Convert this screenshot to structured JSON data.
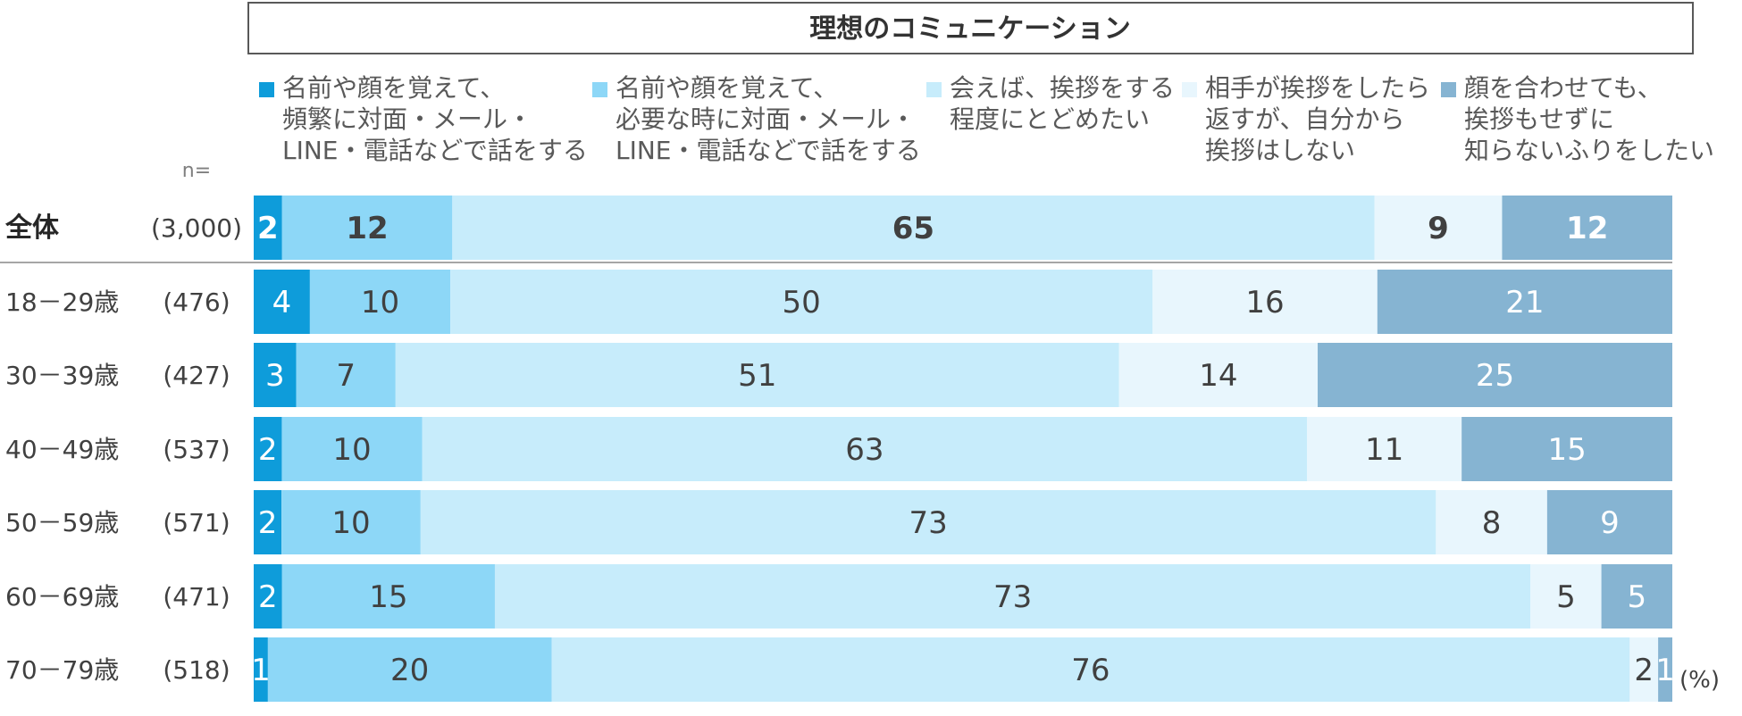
{
  "chart_data": {
    "type": "bar",
    "orientation": "horizontal",
    "stacked": true,
    "title": "理想のコミュニケーション",
    "n_label": "n=",
    "unit": "(%)",
    "xlim": [
      0,
      100
    ],
    "grid": false,
    "legend_position": "top",
    "categories": [
      {
        "label": "全体",
        "n": "(3,000)",
        "total": true
      },
      {
        "label": "18－29歳",
        "n": "(476)"
      },
      {
        "label": "30－39歳",
        "n": "(427)"
      },
      {
        "label": "40－49歳",
        "n": "(537)"
      },
      {
        "label": "50－59歳",
        "n": "(571)"
      },
      {
        "label": "60－69歳",
        "n": "(471)"
      },
      {
        "label": "70－79歳",
        "n": "(518)"
      }
    ],
    "series": [
      {
        "name": "名前や顔を覚えて、頻繁に対面・メール・LINE・電話などで話をする",
        "legend_lines": [
          "名前や顔を覚えて、",
          "頻繁に対面・メール・",
          "LINE・電話などで話をする"
        ],
        "color": "#0E9CDA",
        "label_color": "#ffffff",
        "values": [
          2,
          4,
          3,
          2,
          2,
          2,
          1
        ]
      },
      {
        "name": "名前や顔を覚えて、必要な時に対面・メール・LINE・電話などで話をする",
        "legend_lines": [
          "名前や顔を覚えて、",
          "必要な時に対面・メール・",
          "LINE・電話などで話をする"
        ],
        "color": "#8DD7F7",
        "label_color": "#404040",
        "values": [
          12,
          10,
          7,
          10,
          10,
          15,
          20
        ]
      },
      {
        "name": "会えば、挨拶をする程度にとどめたい",
        "legend_lines": [
          "会えば、挨拶をする",
          "程度にとどめたい"
        ],
        "color": "#C7ECFB",
        "label_color": "#404040",
        "values": [
          65,
          50,
          51,
          63,
          73,
          73,
          76
        ]
      },
      {
        "name": "相手が挨拶をしたら返すが、自分から挨拶はしない",
        "legend_lines": [
          "相手が挨拶をしたら",
          "返すが、自分から",
          "挨拶はしない"
        ],
        "color": "#E8F6FD",
        "label_color": "#404040",
        "values": [
          9,
          16,
          14,
          11,
          8,
          5,
          2
        ]
      },
      {
        "name": "顔を合わせても、挨拶もせずに知らないふりをしたい",
        "legend_lines": [
          "顔を合わせても、",
          "挨拶もせずに",
          "知らないふりをしたい"
        ],
        "color": "#86B4D2",
        "label_color": "#ffffff",
        "values": [
          12,
          21,
          25,
          15,
          9,
          5,
          1
        ]
      }
    ]
  }
}
